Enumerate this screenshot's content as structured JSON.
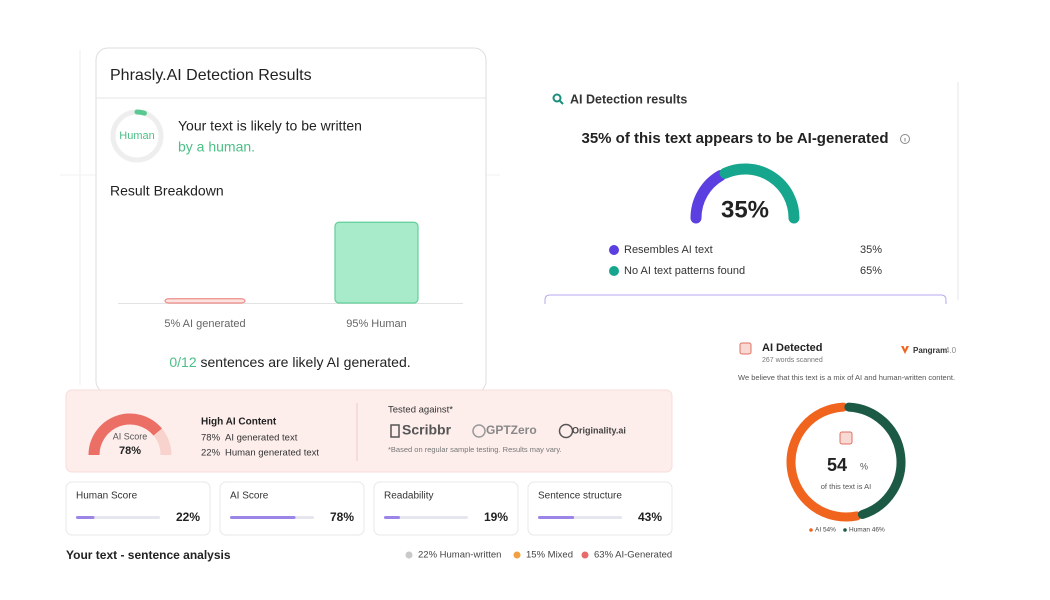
{
  "phrasly": {
    "title": "Phrasly.AI Detection Results",
    "badge": "Human",
    "verdict_line1": "Your text is likely to be written",
    "verdict_line2": "by a human.",
    "breakdown_title": "Result Breakdown",
    "bars": [
      {
        "label": "5% AI generated",
        "value": 5,
        "color": "#fbe3e1",
        "border": "#ee8d88"
      },
      {
        "label": "95% Human",
        "value": 95,
        "color": "#a8ebca",
        "border": "#62cf9a"
      }
    ],
    "sentences_count": "0/12",
    "sentences_text": " sentences are likely AI generated."
  },
  "detection": {
    "title": "AI Detection results",
    "headline": "35% of this text appears to be AI-generated",
    "items": [
      {
        "name": "Resembles AI text",
        "value": 35,
        "value_label": "35%",
        "color": "#5b3fe0"
      },
      {
        "name": "No AI text patterns found",
        "value": 65,
        "value_label": "65%",
        "color": "#16a58d"
      }
    ]
  },
  "score_panel": {
    "gauge_title": "AI Score",
    "heading": "High AI Content",
    "rows": [
      {
        "value": 78,
        "value_label": "78%",
        "text": "AI generated text"
      },
      {
        "value": 22,
        "value_label": "22%",
        "text": "Human generated text"
      }
    ],
    "tested_title": "Tested against*",
    "tools": [
      "Scribbr",
      "GPTZero",
      "Originality.ai"
    ],
    "note": "*Based on regular sample testing. Results may vary."
  },
  "cards": [
    {
      "title": "Human Score",
      "value": 22,
      "value_label": "22%"
    },
    {
      "title": "AI Score",
      "value": 78,
      "value_label": "78%"
    },
    {
      "title": "Readability",
      "value": 19,
      "value_label": "19%"
    },
    {
      "title": "Sentence structure",
      "value": 43,
      "value_label": "43%"
    }
  ],
  "sentence_analysis": {
    "title": "Your text - sentence analysis",
    "legend": [
      {
        "label": "22% Human-written",
        "color": "#c9c9c9"
      },
      {
        "label": "15% Mixed",
        "color": "#f0a040"
      },
      {
        "label": "63% AI-Generated",
        "color": "#e86a6a"
      }
    ]
  },
  "pangram": {
    "title": "AI Detected",
    "words": "267 words scanned",
    "brand": "Pangram",
    "version": "4.0",
    "message": "We believe that this text is a mix of AI and human-written content.",
    "center_value": 54,
    "center_unit": "%",
    "caption": "of this text is AI",
    "segments": [
      {
        "value": 54,
        "legend_label": "AI 54%",
        "color": "#f0641e"
      },
      {
        "value": 46,
        "legend_label": "Human 46%",
        "color": "#1d5a45"
      }
    ]
  }
}
